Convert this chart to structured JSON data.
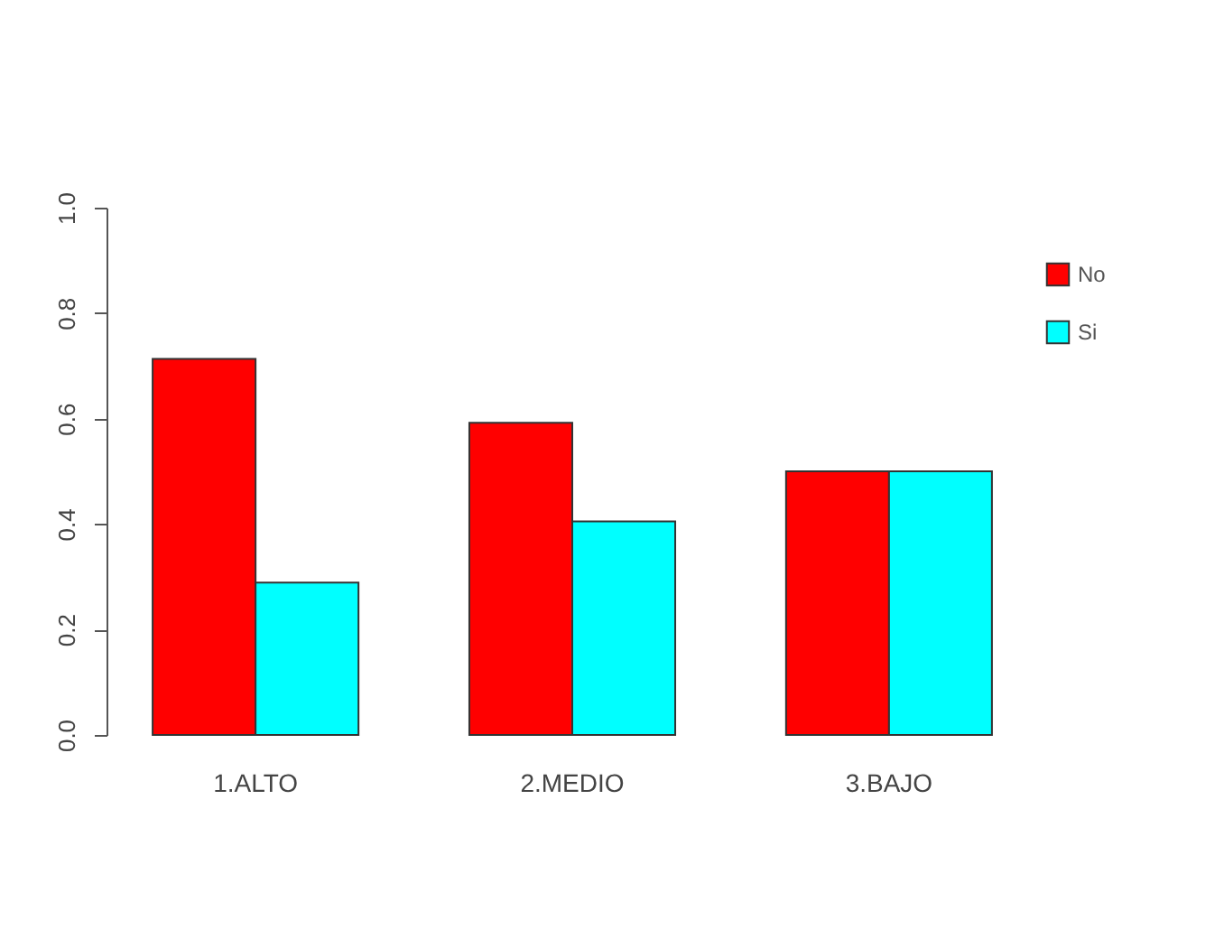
{
  "chart_data": {
    "type": "bar",
    "categories": [
      "1.ALTO",
      "2.MEDIO",
      "3.BAJO"
    ],
    "series": [
      {
        "name": "No",
        "color": "#ff0000",
        "values": [
          0.713,
          0.592,
          0.5
        ]
      },
      {
        "name": "Si",
        "color": "#00ffff",
        "values": [
          0.289,
          0.405,
          0.5
        ]
      }
    ],
    "ylim": [
      0,
      1
    ],
    "yticks": [
      {
        "value": 0,
        "label": "0.0"
      },
      {
        "value": 0.2,
        "label": "0.2"
      },
      {
        "value": 0.4,
        "label": "0.4"
      },
      {
        "value": 0.6,
        "label": "0.6"
      },
      {
        "value": 0.8,
        "label": "0.8"
      },
      {
        "value": 1,
        "label": "1.0"
      }
    ],
    "grid": false,
    "legend": "top right"
  }
}
